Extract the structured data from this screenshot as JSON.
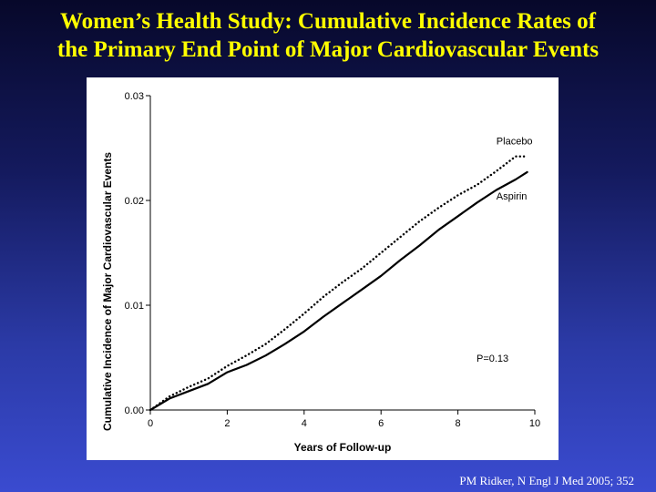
{
  "slide": {
    "title_line1": "Women’s Health Study: Cumulative Incidence Rates of",
    "title_line2": "the Primary End Point of Major Cardiovascular Events",
    "citation": "PM Ridker, N Engl J Med 2005; 352",
    "colors": {
      "title": "#ffff00",
      "background_top": "#07082a",
      "background_bottom": "#3a4bd0",
      "panel": "#ffffff"
    }
  },
  "chart_data": {
    "type": "line",
    "title": "",
    "xlabel": "Years of Follow-up",
    "ylabel": "Cumulative Incidence of Major Cardiovascular Events",
    "xlim": [
      0,
      10
    ],
    "ylim": [
      0,
      0.03
    ],
    "x_ticks": [
      0,
      2,
      4,
      6,
      8,
      10
    ],
    "x_tick_labels": [
      "0",
      "2",
      "4",
      "6",
      "8",
      "10"
    ],
    "y_ticks": [
      0,
      0.01,
      0.02,
      0.03
    ],
    "y_tick_labels": [
      "0.00",
      "0.01",
      "0.02",
      "0.03"
    ],
    "grid": false,
    "annotation": "P=0.13",
    "series": [
      {
        "name": "Placebo",
        "style": "dotted",
        "x": [
          0,
          0.5,
          1,
          1.5,
          2,
          2.5,
          3,
          3.5,
          4,
          4.5,
          5,
          5.5,
          6,
          6.5,
          7,
          7.5,
          8,
          8.5,
          9,
          9.5,
          9.8
        ],
        "values": [
          0,
          0.0013,
          0.0022,
          0.003,
          0.0042,
          0.0052,
          0.0063,
          0.0077,
          0.0092,
          0.0108,
          0.0122,
          0.0135,
          0.015,
          0.0165,
          0.018,
          0.0193,
          0.0205,
          0.0215,
          0.0228,
          0.0242,
          0.0242
        ]
      },
      {
        "name": "Aspirin",
        "style": "solid",
        "x": [
          0,
          0.5,
          1,
          1.5,
          2,
          2.5,
          3,
          3.5,
          4,
          4.5,
          5,
          5.5,
          6,
          6.5,
          7,
          7.5,
          8,
          8.5,
          9,
          9.5,
          9.8
        ],
        "values": [
          0,
          0.0011,
          0.0018,
          0.0025,
          0.0036,
          0.0043,
          0.0052,
          0.0063,
          0.0075,
          0.0089,
          0.0102,
          0.0115,
          0.0128,
          0.0143,
          0.0157,
          0.0172,
          0.0185,
          0.0198,
          0.021,
          0.022,
          0.0227
        ]
      }
    ]
  }
}
